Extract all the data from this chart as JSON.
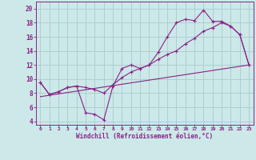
{
  "xlabel": "Windchill (Refroidissement éolien,°C)",
  "bg_color": "#cce8e8",
  "grid_color": "#aacccc",
  "line_color": "#882288",
  "x_ticks": [
    0,
    1,
    2,
    3,
    4,
    5,
    6,
    7,
    8,
    9,
    10,
    11,
    12,
    13,
    14,
    15,
    16,
    17,
    18,
    19,
    20,
    21,
    22,
    23
  ],
  "y_ticks": [
    4,
    6,
    8,
    10,
    12,
    14,
    16,
    18,
    20
  ],
  "ylim": [
    3.5,
    21.0
  ],
  "xlim": [
    -0.5,
    23.5
  ],
  "line1_x": [
    0,
    1,
    2,
    3,
    4,
    5,
    6,
    7,
    8,
    9,
    10,
    11,
    12,
    13,
    14,
    15,
    16,
    17,
    18,
    19,
    20,
    21,
    22,
    23
  ],
  "line1_y": [
    9.5,
    7.8,
    8.2,
    8.8,
    9.0,
    5.2,
    5.0,
    4.2,
    9.0,
    11.5,
    12.0,
    11.5,
    12.0,
    13.8,
    16.0,
    18.0,
    18.5,
    18.3,
    19.8,
    18.2,
    18.2,
    17.5,
    16.3,
    12.0
  ],
  "line2_x": [
    0,
    1,
    2,
    3,
    4,
    5,
    6,
    7,
    8,
    9,
    10,
    11,
    12,
    13,
    14,
    15,
    16,
    17,
    18,
    19,
    20,
    21,
    22,
    23
  ],
  "line2_y": [
    9.5,
    7.8,
    8.2,
    8.8,
    9.0,
    8.8,
    8.5,
    8.0,
    9.2,
    10.2,
    11.0,
    11.5,
    12.0,
    12.8,
    13.5,
    14.0,
    15.0,
    15.8,
    16.8,
    17.3,
    18.0,
    17.5,
    16.3,
    12.0
  ],
  "line3_x": [
    0,
    23
  ],
  "line3_y": [
    7.5,
    12.0
  ]
}
